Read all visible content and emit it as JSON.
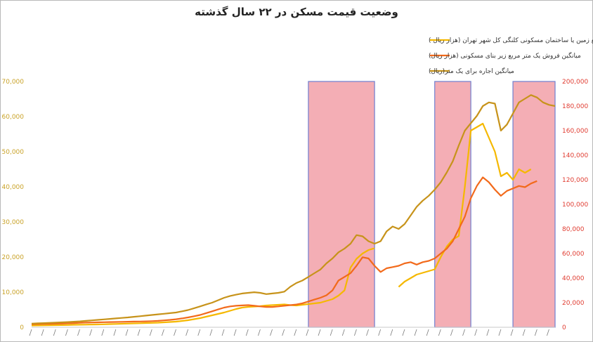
{
  "chart_data": {
    "type": "line",
    "title": "وضعیت قیمت مسکن در ۲۲ سال گذشته",
    "left_axis": {
      "ylim": [
        0,
        70000
      ],
      "ticks": [
        "0",
        "10,000",
        "20,000",
        "30,000",
        "40,000",
        "50,000",
        "60,000",
        "70,000"
      ],
      "color": "#c9a227"
    },
    "right_axis": {
      "ylim": [
        0,
        200000
      ],
      "ticks": [
        "0",
        "20,000",
        "40,000",
        "60,000",
        "80,000",
        "100,000",
        "120,000",
        "140,000",
        "160,000",
        "180,000",
        "200,000"
      ],
      "color": "#e03c31"
    },
    "x": [
      0,
      1,
      2,
      3,
      4,
      5,
      6,
      7,
      8,
      9,
      10,
      11,
      12,
      13,
      14,
      15,
      16,
      17,
      18,
      19,
      20,
      21,
      22,
      23,
      24,
      25,
      26,
      27,
      28,
      29,
      30,
      31,
      32,
      33,
      34,
      35,
      36,
      37,
      38,
      39,
      40,
      41,
      42,
      43,
      44,
      45,
      46,
      47,
      48,
      49,
      50,
      51,
      52,
      53,
      54,
      55,
      56,
      57,
      58,
      59,
      60,
      61,
      62,
      63,
      64,
      65,
      66,
      67,
      68,
      69,
      70,
      71,
      72,
      73,
      74,
      75,
      76,
      77,
      78,
      79,
      80,
      81,
      82,
      83,
      84,
      85,
      86,
      87
    ],
    "series": [
      {
        "name": "میانگین فروش یک متر مربع زمین یا ساختمان مسکونی کلنگی کل شهر تهران (هزار ریال )",
        "color": "#f5b800",
        "axis": "left",
        "values": [
          500,
          520,
          550,
          580,
          600,
          620,
          650,
          700,
          720,
          750,
          780,
          800,
          850,
          900,
          950,
          1000,
          1050,
          1100,
          1150,
          1200,
          1250,
          1300,
          1400,
          1500,
          1600,
          1800,
          2000,
          2300,
          2600,
          3000,
          3400,
          3800,
          4200,
          4700,
          5200,
          5600,
          5800,
          5900,
          6000,
          6200,
          6300,
          6400,
          6500,
          6300,
          6200,
          6400,
          6600,
          6800,
          7000,
          7500,
          8000,
          9000,
          10500,
          17000,
          19500,
          21000,
          22000,
          22500,
          null,
          null,
          null,
          11500,
          13000,
          14000,
          15000,
          15500,
          16000,
          16500,
          20000,
          23000,
          25000,
          26000,
          40000,
          56000,
          57000,
          58000,
          54000,
          50000,
          43000,
          44000,
          42000,
          45000,
          44000,
          45000,
          null,
          null,
          null,
          null
        ]
      },
      {
        "name": "میانگین فروش یک متر مربع زیر بنای مسکونی (هزار ریال)",
        "color": "#f26a1b",
        "axis": "right",
        "values": [
          2500,
          2600,
          2700,
          2800,
          2900,
          3000,
          3200,
          3400,
          3600,
          3800,
          3900,
          4000,
          4100,
          4200,
          4300,
          4400,
          4500,
          4600,
          4700,
          4800,
          5000,
          5200,
          5600,
          6000,
          6500,
          7200,
          8000,
          9000,
          10000,
          11500,
          13000,
          14500,
          16000,
          17000,
          17500,
          17800,
          18000,
          17500,
          17000,
          16500,
          16500,
          17000,
          17500,
          18000,
          18500,
          19500,
          21000,
          22500,
          24000,
          26000,
          30000,
          38000,
          41000,
          44000,
          50000,
          57000,
          56000,
          50000,
          45000,
          48000,
          49000,
          50000,
          52000,
          53000,
          51000,
          53000,
          54000,
          56000,
          60000,
          64000,
          70000,
          80000,
          90000,
          105000,
          115000,
          122000,
          118000,
          112000,
          107000,
          111000,
          113000,
          115000,
          114000,
          117000,
          119000,
          null,
          null,
          null
        ]
      },
      {
        "name": "میانگین اجاره برای یک متر(ریال)",
        "color": "#c7931a",
        "axis": "right",
        "values": [
          3000,
          3200,
          3400,
          3600,
          3800,
          4000,
          4200,
          4500,
          4800,
          5200,
          5600,
          6000,
          6400,
          6800,
          7200,
          7600,
          8000,
          8500,
          9000,
          9500,
          10000,
          10500,
          11000,
          11500,
          12000,
          13000,
          14000,
          15500,
          17000,
          18500,
          20000,
          22000,
          24000,
          25500,
          26500,
          27500,
          28000,
          28500,
          28000,
          27000,
          27500,
          28000,
          29000,
          33000,
          36000,
          38000,
          41000,
          44000,
          47000,
          52000,
          56000,
          61000,
          64000,
          68000,
          75000,
          74000,
          70000,
          68000,
          70000,
          78000,
          82000,
          80000,
          84000,
          91000,
          98000,
          103000,
          107000,
          112000,
          118000,
          126000,
          135000,
          148000,
          160000,
          166000,
          172000,
          180000,
          183000,
          182000,
          160000,
          165000,
          174000,
          183000,
          186000,
          189000,
          187000,
          183000,
          181000,
          180000
        ]
      }
    ],
    "shaded_regions_x": [
      [
        46,
        57
      ],
      [
        67,
        73
      ],
      [
        80,
        87
      ]
    ]
  }
}
